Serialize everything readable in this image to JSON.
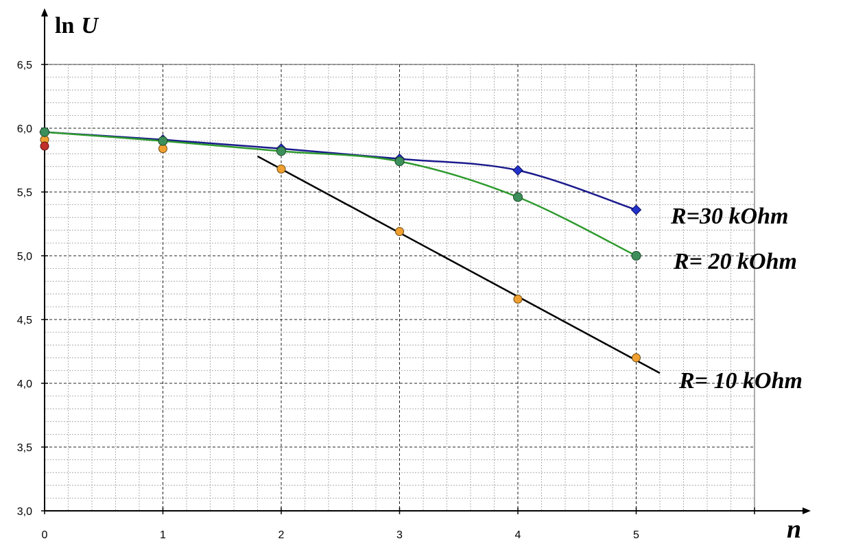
{
  "chart_data": {
    "type": "line",
    "ylabel_prefix": "ln",
    "ylabel_var": "U",
    "xlabel": "n",
    "xlim": [
      0,
      6
    ],
    "ylim": [
      3.0,
      6.5
    ],
    "x_ticks": [
      "0",
      "1",
      "2",
      "3",
      "4",
      "5"
    ],
    "y_ticks": [
      "3,0",
      "3,5",
      "4,0",
      "4,5",
      "5,0",
      "5,5",
      "6,0",
      "6,5"
    ],
    "grid": true,
    "series": [
      {
        "name": "R=30 kOhm",
        "color": "#1a1a8c",
        "marker_color": "#2233cc",
        "marker": "diamond",
        "x": [
          0,
          1,
          2,
          3,
          4,
          5
        ],
        "y": [
          5.97,
          5.91,
          5.84,
          5.76,
          5.67,
          5.36
        ]
      },
      {
        "name": "R= 20 kOhm",
        "color": "#2e9a2e",
        "marker_color": "#3c8f5a",
        "marker": "circle",
        "x": [
          0,
          1,
          2,
          3,
          4,
          5
        ],
        "y": [
          5.97,
          5.9,
          5.82,
          5.74,
          5.46,
          5.0
        ]
      },
      {
        "name": "R= 10 kOhm",
        "color": "#000000",
        "marker_color": "#f0a030",
        "marker": "circle",
        "x": [
          0,
          1,
          2,
          3,
          4,
          5
        ],
        "y": [
          5.91,
          5.84,
          5.68,
          5.19,
          4.66,
          4.2
        ],
        "fit_line": {
          "x": [
            1.8,
            5.2
          ],
          "y": [
            5.78,
            4.08
          ]
        }
      }
    ],
    "extra_points": [
      {
        "x": 0,
        "y": 5.86,
        "color": "#c0302a"
      }
    ]
  }
}
